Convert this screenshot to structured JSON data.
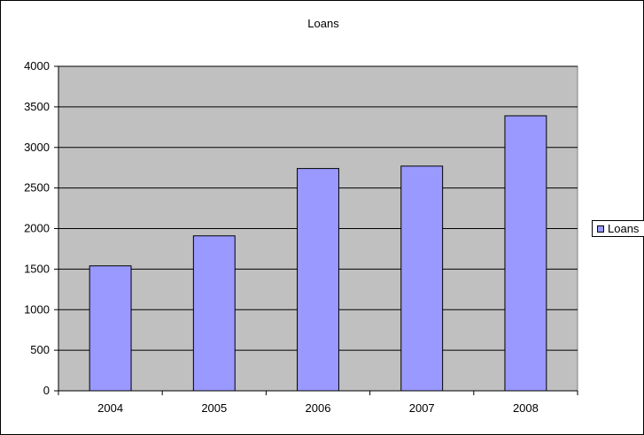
{
  "chart_data": {
    "type": "bar",
    "title": "Loans",
    "categories": [
      "2004",
      "2005",
      "2006",
      "2007",
      "2008"
    ],
    "series": [
      {
        "name": "Loans",
        "values": [
          1540,
          1910,
          2740,
          2770,
          3390
        ]
      }
    ],
    "ylim": [
      0,
      4000
    ],
    "yticks": [
      "0",
      "500",
      "1000",
      "1500",
      "2000",
      "2500",
      "3000",
      "3500",
      "4000"
    ],
    "grid": true,
    "legend": "right",
    "colors": {
      "bar": "#9999ff",
      "plot_background": "#c0c0c0"
    }
  }
}
